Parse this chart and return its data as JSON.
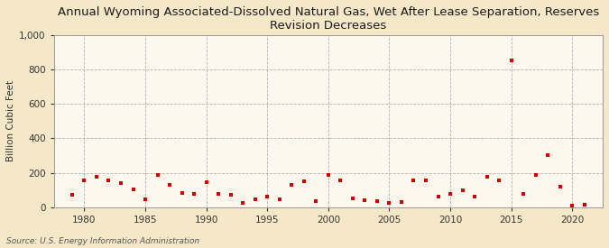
{
  "title": "Annual Wyoming Associated-Dissolved Natural Gas, Wet After Lease Separation, Reserves\nRevision Decreases",
  "ylabel": "Billion Cubic Feet",
  "source": "Source: U.S. Energy Information Administration",
  "background_color": "#f5e8c8",
  "plot_background_color": "#fdf8ee",
  "marker_color": "#cc0000",
  "years": [
    1979,
    1980,
    1981,
    1982,
    1983,
    1984,
    1985,
    1986,
    1987,
    1988,
    1989,
    1990,
    1991,
    1992,
    1993,
    1994,
    1995,
    1996,
    1997,
    1998,
    1999,
    2000,
    2001,
    2002,
    2003,
    2004,
    2005,
    2006,
    2007,
    2008,
    2009,
    2010,
    2011,
    2012,
    2013,
    2014,
    2015,
    2016,
    2017,
    2018,
    2019,
    2020,
    2021
  ],
  "values": [
    70,
    155,
    175,
    155,
    140,
    105,
    45,
    190,
    130,
    85,
    80,
    145,
    75,
    70,
    25,
    45,
    60,
    45,
    130,
    150,
    35,
    190,
    155,
    50,
    40,
    35,
    25,
    30,
    155,
    155,
    60,
    80,
    100,
    60,
    175,
    155,
    855,
    75,
    185,
    305,
    120,
    10,
    15
  ],
  "xlim": [
    1977.5,
    2022.5
  ],
  "ylim": [
    0,
    1000
  ],
  "yticks": [
    0,
    200,
    400,
    600,
    800,
    1000
  ],
  "xticks": [
    1980,
    1985,
    1990,
    1995,
    2000,
    2005,
    2010,
    2015,
    2020
  ],
  "grid_color": "#aaaaaa",
  "title_fontsize": 9.5,
  "label_fontsize": 7.5,
  "tick_fontsize": 7.5,
  "source_fontsize": 6.5
}
